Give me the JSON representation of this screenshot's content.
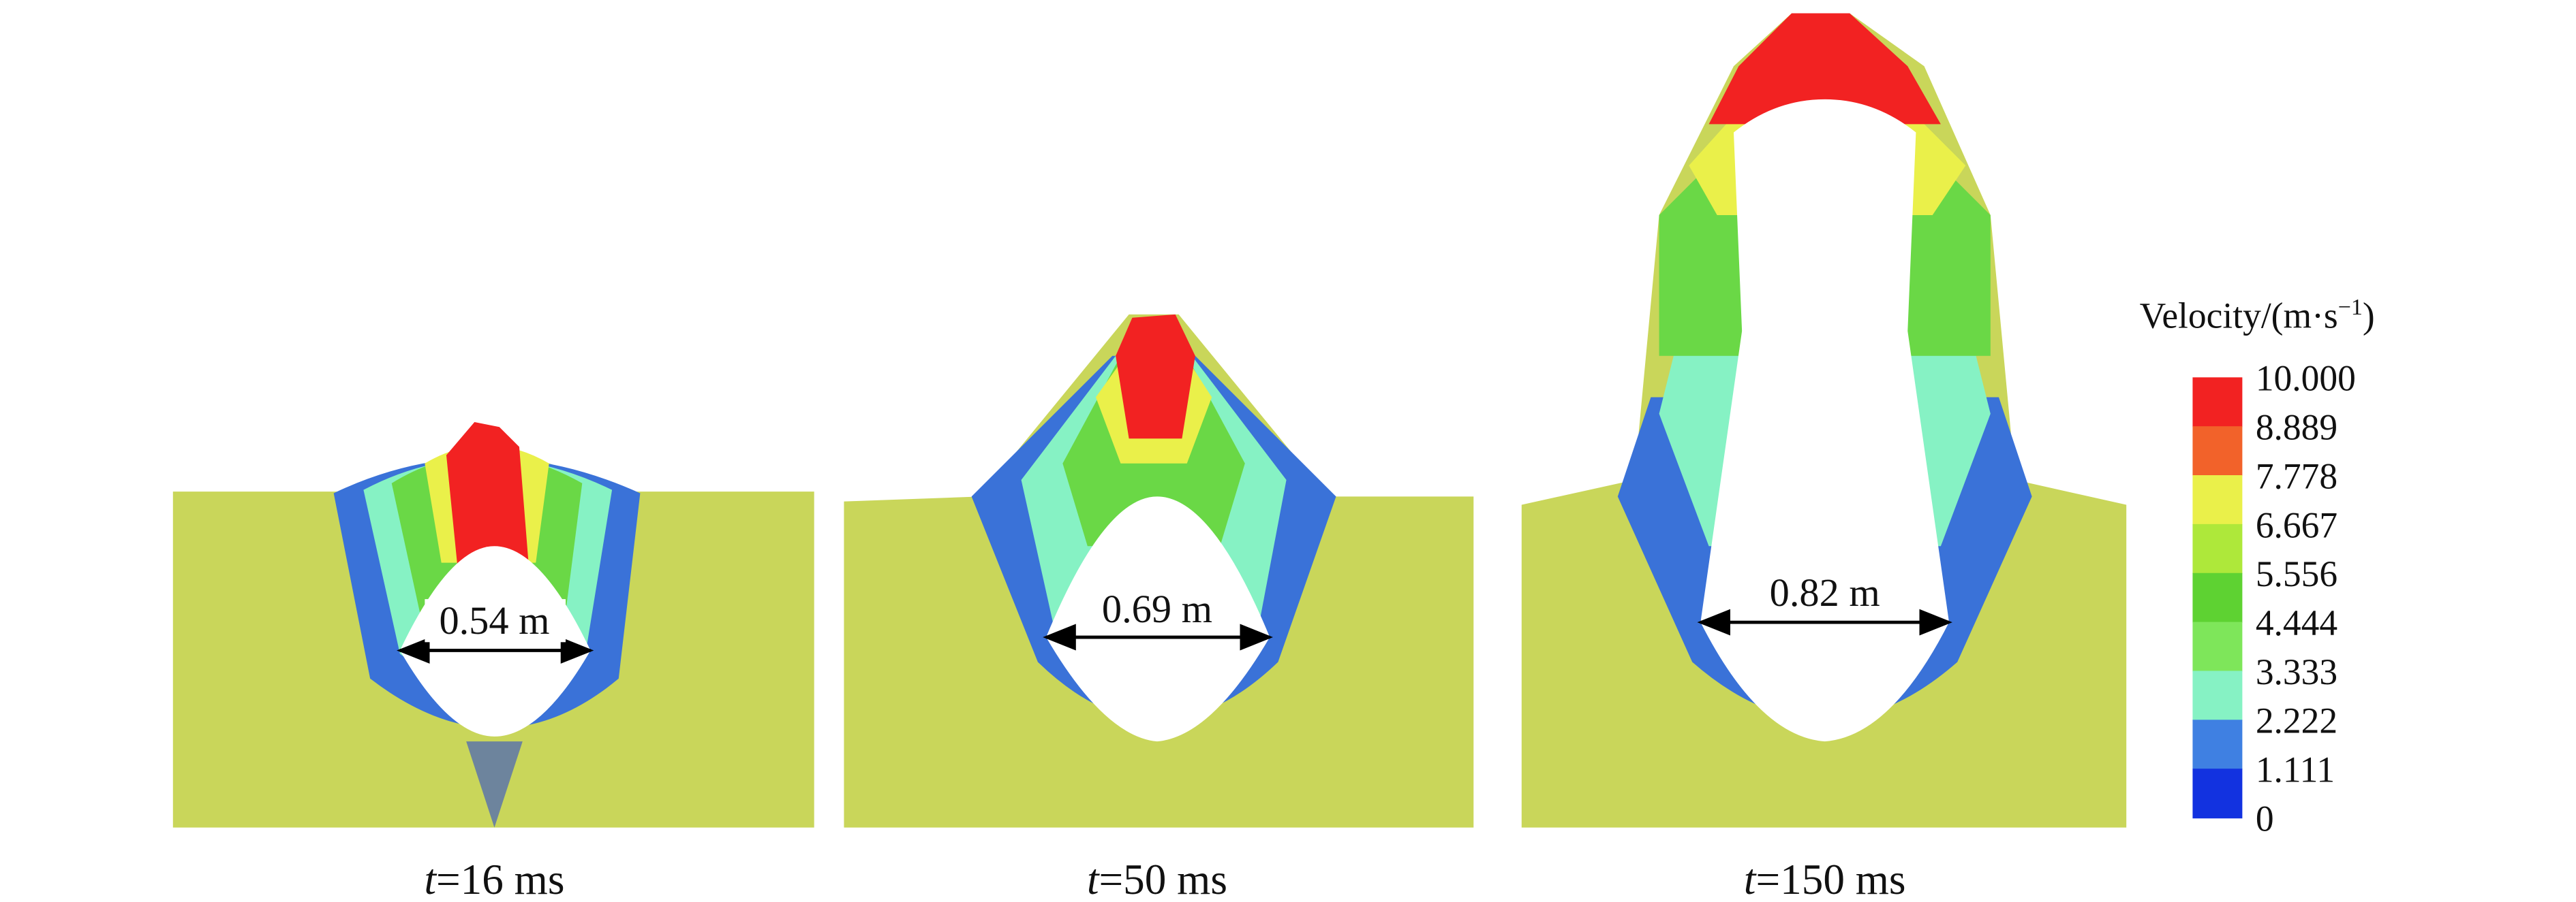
{
  "panels": [
    {
      "time_var": "t",
      "time": "=16 ms",
      "width": "0.54 m"
    },
    {
      "time_var": "t",
      "time": "=50 ms",
      "width": "0.69 m"
    },
    {
      "time_var": "t",
      "time": "=150 ms",
      "width": "0.82 m"
    }
  ],
  "colorbar": {
    "title": "Velocity/(m·s",
    "title_sup": "−1",
    "title_end": ")",
    "labels": [
      "10.000",
      "8.889",
      "7.778",
      "6.667",
      "5.556",
      "4.444",
      "3.333",
      "2.222",
      "1.111",
      "0"
    ],
    "colors": [
      "#f22222",
      "#f2622a",
      "#eaf04a",
      "#aee83a",
      "#5ed232",
      "#7ee65a",
      "#86f2c4",
      "#3f80e2",
      "#1232e0"
    ]
  }
}
